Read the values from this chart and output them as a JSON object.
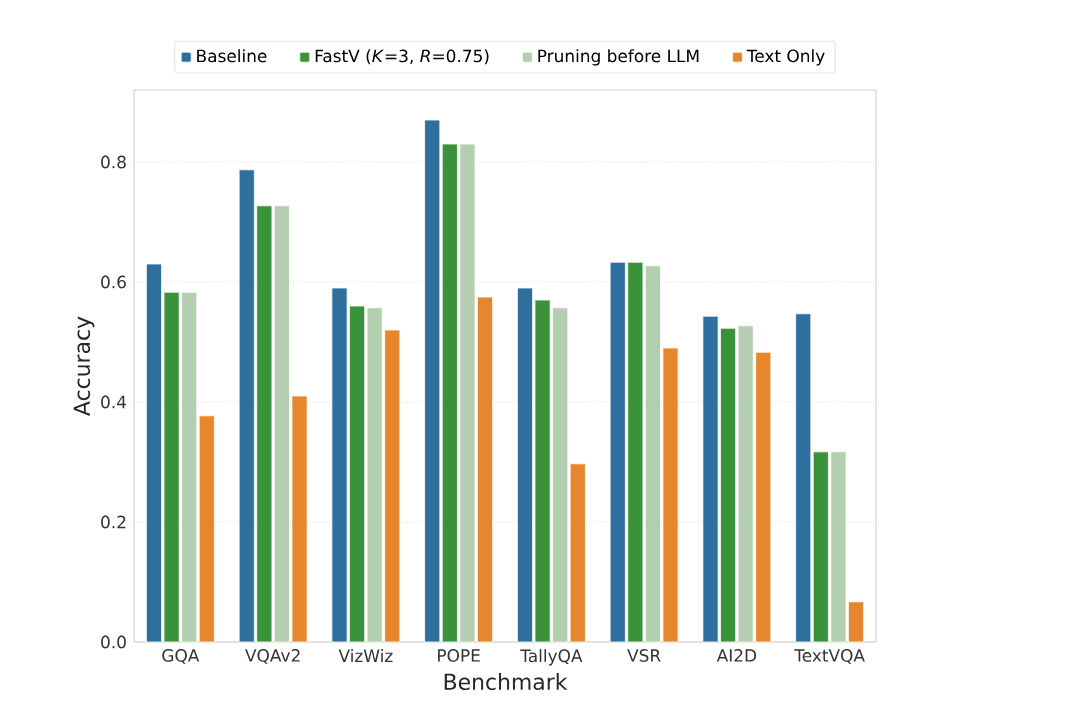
{
  "chart_data": {
    "type": "bar",
    "xlabel": "Benchmark",
    "ylabel": "Accuracy",
    "categories": [
      "GQA",
      "VQAv2",
      "VizWiz",
      "POPE",
      "TallyQA",
      "VSR",
      "AI2D",
      "TextVQA"
    ],
    "series": [
      {
        "name": "Baseline",
        "color": "#2e6f9e",
        "values": [
          0.63,
          0.787,
          0.59,
          0.87,
          0.59,
          0.633,
          0.543,
          0.547
        ]
      },
      {
        "name": "FastV (*K*=3, *R*=0.75)",
        "color": "#3a923a",
        "values": [
          0.583,
          0.727,
          0.56,
          0.83,
          0.57,
          0.633,
          0.523,
          0.317
        ]
      },
      {
        "name": "Pruning before LLM",
        "color": "#b3cfb0",
        "values": [
          0.583,
          0.727,
          0.557,
          0.83,
          0.557,
          0.627,
          0.527,
          0.317
        ]
      },
      {
        "name": "Text Only",
        "color": "#e6862d",
        "values": [
          0.377,
          0.41,
          0.52,
          0.575,
          0.297,
          0.49,
          0.483,
          0.067
        ]
      }
    ],
    "ylim": [
      0,
      0.92
    ],
    "yticks": [
      {
        "value": 0,
        "label": "0.0"
      },
      0.2,
      0.4,
      0.6,
      0.8
    ],
    "grid": "y",
    "legend": "top"
  }
}
